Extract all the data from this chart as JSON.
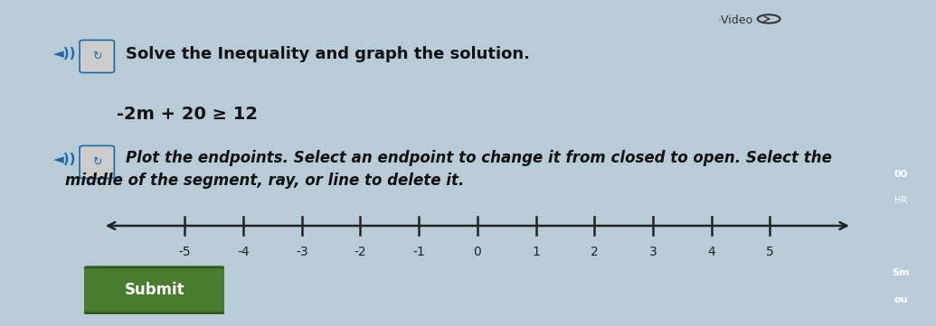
{
  "bg_color": "#b8ccd8",
  "panel_color": "#e2e2e2",
  "title_text": "Solve the Inequality and graph the solution.",
  "inequality_text": "-2m + 20 ≥ 12",
  "instruction_line1": "Plot the endpoints. Select an endpoint to change it from closed to open. Select the",
  "instruction_line2": "middle of the segment, ray, or line to delete it.",
  "video_text": "·Video",
  "submit_text": "Submit",
  "submit_color": "#4a7c2f",
  "submit_border_color": "#2d5a1a",
  "submit_text_color": "#ffffff",
  "number_line_ticks": [
    -5,
    -4,
    -3,
    -2,
    -1,
    0,
    1,
    2,
    3,
    4,
    5
  ],
  "axis_color": "#222222",
  "tick_color": "#222222",
  "label_color": "#222222",
  "green_panel_color": "#4a7c2f",
  "blue_panel_color": "#1a6aaa",
  "red_panel_color": "#cc2222",
  "title_fontsize": 13,
  "inequality_fontsize": 14,
  "instruction_fontsize": 12,
  "speaker_color": "#1a6aaa"
}
